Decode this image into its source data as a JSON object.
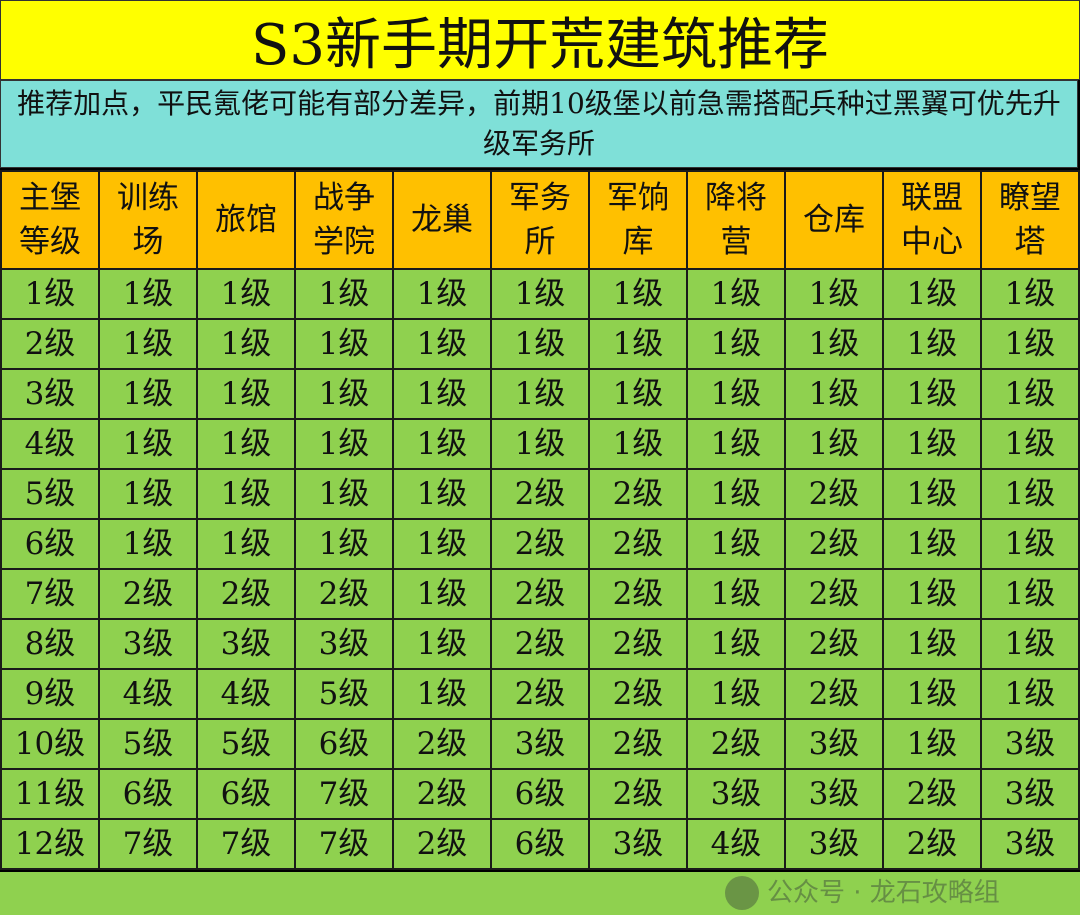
{
  "title": "S3新手期开荒建筑推荐",
  "note": "推荐加点，平民氪佬可能有部分差异，前期10级堡以前急需搭配兵种过黑翼可优先升级军务所",
  "colors": {
    "title_bg": "#ffff00",
    "note_bg": "#7fe0d8",
    "header_bg": "#ffc000",
    "cell_bg": "#8fd14f"
  },
  "table": {
    "headers": [
      "主堡\n等级",
      "训练\n场",
      "旅馆",
      "战争\n学院",
      "龙巢",
      "军务\n所",
      "军饷\n库",
      "降将\n营",
      "仓库",
      "联盟\n中心",
      "瞭望\n塔"
    ],
    "rows": [
      [
        "1级",
        "1级",
        "1级",
        "1级",
        "1级",
        "1级",
        "1级",
        "1级",
        "1级",
        "1级",
        "1级"
      ],
      [
        "2级",
        "1级",
        "1级",
        "1级",
        "1级",
        "1级",
        "1级",
        "1级",
        "1级",
        "1级",
        "1级"
      ],
      [
        "3级",
        "1级",
        "1级",
        "1级",
        "1级",
        "1级",
        "1级",
        "1级",
        "1级",
        "1级",
        "1级"
      ],
      [
        "4级",
        "1级",
        "1级",
        "1级",
        "1级",
        "1级",
        "1级",
        "1级",
        "1级",
        "1级",
        "1级"
      ],
      [
        "5级",
        "1级",
        "1级",
        "1级",
        "1级",
        "2级",
        "2级",
        "1级",
        "2级",
        "1级",
        "1级"
      ],
      [
        "6级",
        "1级",
        "1级",
        "1级",
        "1级",
        "2级",
        "2级",
        "1级",
        "2级",
        "1级",
        "1级"
      ],
      [
        "7级",
        "2级",
        "2级",
        "2级",
        "1级",
        "2级",
        "2级",
        "1级",
        "2级",
        "1级",
        "1级"
      ],
      [
        "8级",
        "3级",
        "3级",
        "3级",
        "1级",
        "2级",
        "2级",
        "1级",
        "2级",
        "1级",
        "1级"
      ],
      [
        "9级",
        "4级",
        "4级",
        "5级",
        "1级",
        "2级",
        "2级",
        "1级",
        "2级",
        "1级",
        "1级"
      ],
      [
        "10级",
        "5级",
        "5级",
        "6级",
        "2级",
        "3级",
        "2级",
        "2级",
        "3级",
        "1级",
        "3级"
      ],
      [
        "11级",
        "6级",
        "6级",
        "7级",
        "2级",
        "6级",
        "2级",
        "3级",
        "3级",
        "2级",
        "3级"
      ],
      [
        "12级",
        "7级",
        "7级",
        "7级",
        "2级",
        "6级",
        "3级",
        "4级",
        "3级",
        "2级",
        "3级"
      ]
    ]
  },
  "watermark": "公众号 · 龙石攻略组"
}
